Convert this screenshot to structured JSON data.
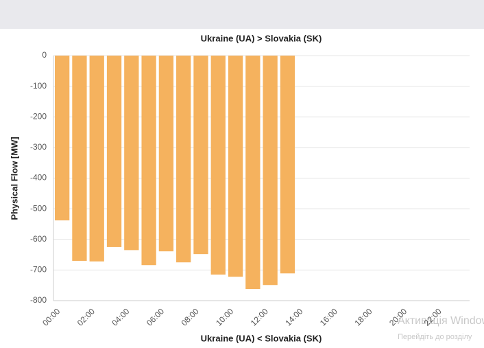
{
  "chart_data": {
    "type": "bar",
    "title": "Ukraine (UA) > Slovakia (SK)",
    "x_label": "Ukraine (UA) < Slovakia (SK)",
    "y_label": "Physical Flow [MW]",
    "categories": [
      "00:00",
      null,
      "02:00",
      null,
      "04:00",
      null,
      "06:00",
      null,
      "08:00",
      null,
      "10:00",
      null,
      "12:00",
      null,
      "14:00",
      null,
      "16:00",
      null,
      "18:00",
      null,
      "20:00",
      null,
      "22:00",
      null
    ],
    "values": [
      -538,
      -670,
      -672,
      -625,
      -635,
      -684,
      -639,
      -675,
      -648,
      -715,
      -722,
      -762,
      -749,
      -711,
      null,
      null,
      null,
      null,
      null,
      null,
      null,
      null,
      null,
      null
    ],
    "color": "#f5b25e",
    "ylim": [
      -800,
      0
    ],
    "yticks": [
      0,
      -100,
      -200,
      -300,
      -400,
      -500,
      -600,
      -700,
      -800
    ],
    "grid": true,
    "watermark": [
      "Активація Windows",
      "Перейдіть до розділу"
    ]
  }
}
